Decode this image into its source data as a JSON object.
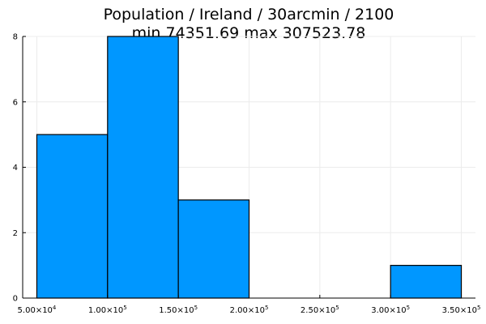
{
  "chart_data": {
    "type": "bar",
    "title": "Population / Ireland / 30arcmin / 2100",
    "subtitle": "min 74351.69  max 307523.78",
    "xlabel": "",
    "ylabel": "",
    "bin_edges": [
      50000,
      100000,
      150000,
      200000,
      250000,
      300000,
      350000
    ],
    "values": [
      5,
      8,
      3,
      0,
      0,
      1
    ],
    "xlim": [
      40000,
      360000
    ],
    "ylim": [
      0,
      8
    ],
    "x_ticks": [
      50000,
      100000,
      150000,
      200000,
      250000,
      300000,
      350000
    ],
    "x_tick_labels": [
      {
        "mantissa": "5.00×10",
        "exp": "4"
      },
      {
        "mantissa": "1.00×10",
        "exp": "5"
      },
      {
        "mantissa": "1.50×10",
        "exp": "5"
      },
      {
        "mantissa": "2.00×10",
        "exp": "5"
      },
      {
        "mantissa": "2.50×10",
        "exp": "5"
      },
      {
        "mantissa": "3.00×10",
        "exp": "5"
      },
      {
        "mantissa": "3.50×10",
        "exp": "5"
      }
    ],
    "y_ticks": [
      0,
      2,
      4,
      6,
      8
    ],
    "y_tick_labels": [
      "0",
      "2",
      "4",
      "6",
      "8"
    ],
    "grid": true,
    "legend": false,
    "bar_color": "#0097ff"
  }
}
